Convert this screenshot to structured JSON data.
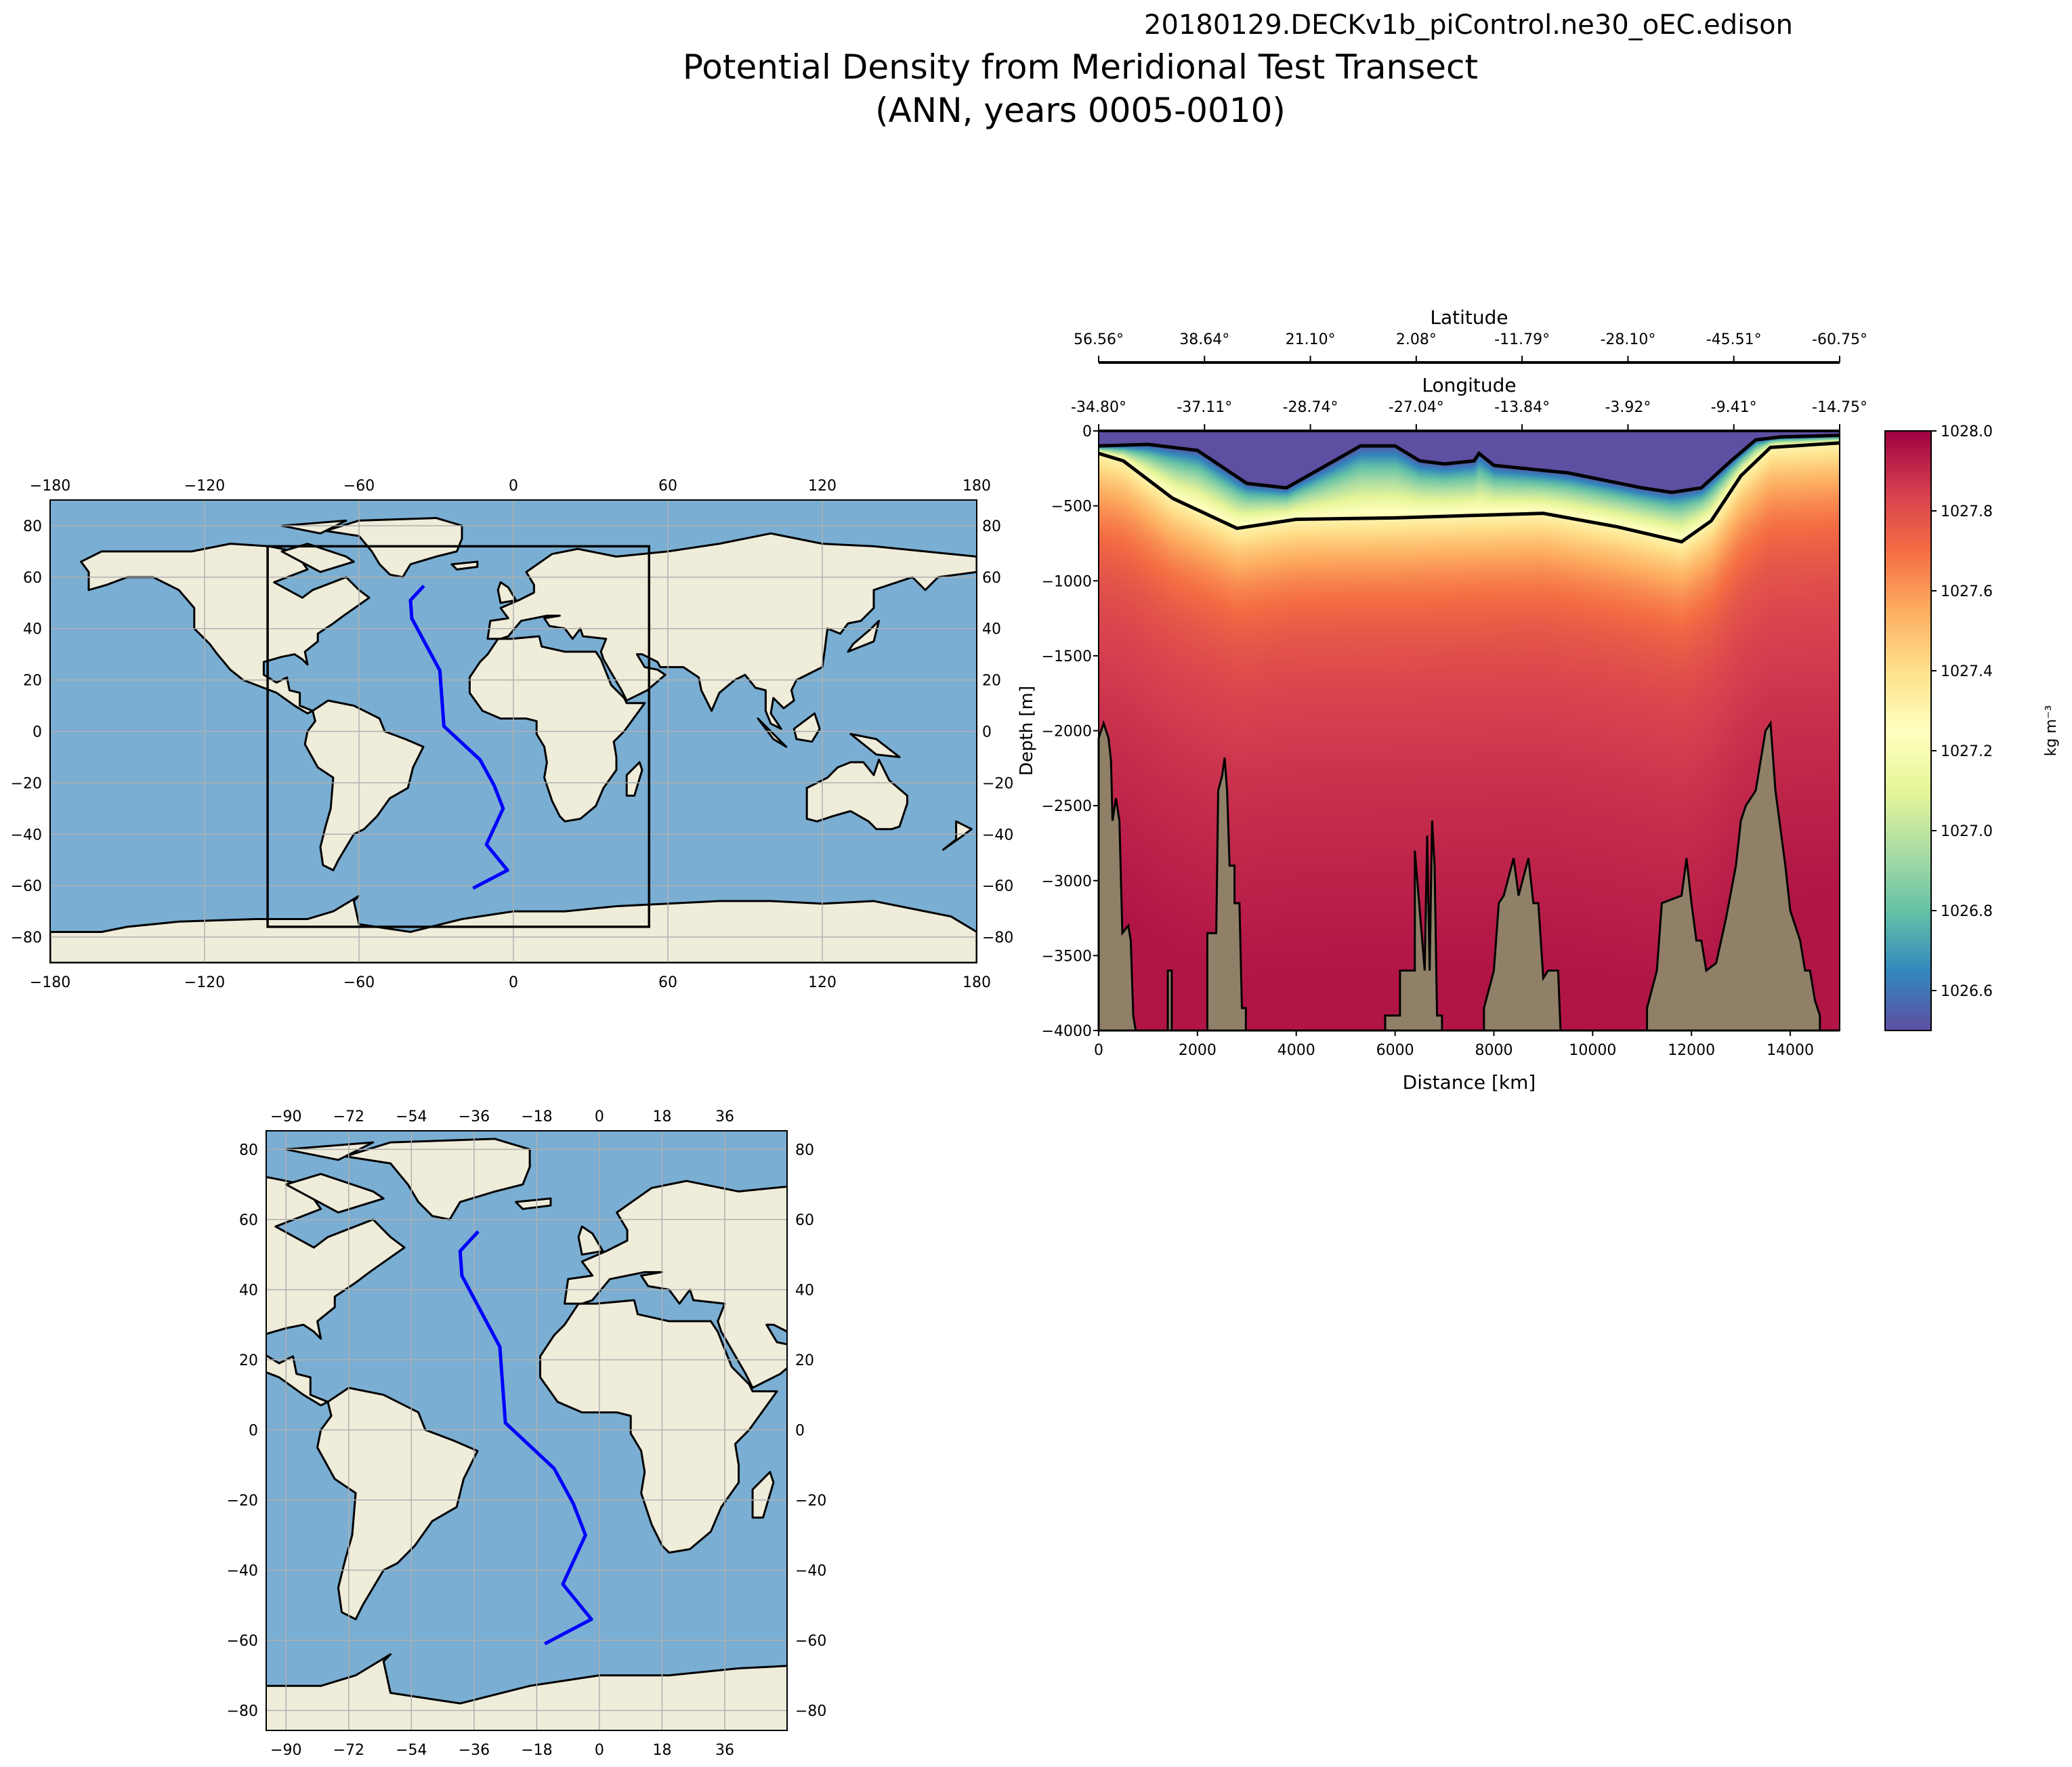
{
  "header": {
    "run_name": "20180129.DECKv1b_piControl.ne30_oEC.edison",
    "title_line1": "Potential Density from Meridional Test Transect",
    "title_line2": "(ANN, years 0005-0010)"
  },
  "chart_data": [
    {
      "type": "heatmap",
      "name": "transect-section",
      "xlabel": "Distance [km]",
      "ylabel": "Depth [m]",
      "xlim": [
        0,
        15000
      ],
      "ylim": [
        -4000,
        0
      ],
      "xticks": [
        0,
        2000,
        4000,
        6000,
        8000,
        10000,
        12000,
        14000
      ],
      "yticks": [
        0,
        -500,
        -1000,
        -1500,
        -2000,
        -2500,
        -3000,
        -3500,
        -4000
      ],
      "top_axis_1": {
        "label": "Latitude",
        "ticks": [
          "56.56°",
          "38.64°",
          "21.10°",
          "2.08°",
          "-11.79°",
          "-28.10°",
          "-45.51°",
          "-60.75°"
        ]
      },
      "top_axis_2": {
        "label": "Longitude",
        "ticks": [
          "-34.80°",
          "-37.11°",
          "-28.74°",
          "-27.04°",
          "-13.84°",
          "-3.92°",
          "-9.41°",
          "-14.75°"
        ]
      },
      "colormap": "Spectral_r",
      "colorbar": {
        "label": "kg m⁻³",
        "range": [
          1026.5,
          1028.0
        ],
        "ticks": [
          "1026.6",
          "1026.8",
          "1027.0",
          "1027.2",
          "1027.4",
          "1027.6",
          "1027.8",
          "1028.0"
        ]
      },
      "pycnocline_depth_m": {
        "x": [
          0,
          500,
          1500,
          2800,
          4000,
          6000,
          9000,
          10500,
          11800,
          12400,
          13000,
          13600,
          15000
        ],
        "depth": [
          150,
          200,
          450,
          650,
          590,
          580,
          550,
          640,
          740,
          600,
          300,
          110,
          80
        ]
      },
      "light_water_depth_m": {
        "x": [
          0,
          1000,
          2000,
          3000,
          3800,
          4500,
          5300,
          6000,
          6500,
          7000,
          7600,
          7700,
          8000,
          9500,
          11000,
          11600,
          12200,
          12800,
          13300,
          13800,
          15000
        ],
        "depth": [
          100,
          90,
          130,
          350,
          380,
          250,
          100,
          100,
          200,
          220,
          200,
          150,
          230,
          280,
          380,
          410,
          380,
          200,
          60,
          40,
          30
        ]
      },
      "bathymetry_m": {
        "x": [
          0,
          100,
          200,
          250,
          280,
          350,
          420,
          480,
          600,
          650,
          700,
          750,
          750,
          1400,
          1400,
          1480,
          1480,
          2200,
          2200,
          2380,
          2420,
          2500,
          2550,
          2600,
          2650,
          2750,
          2750,
          2850,
          2900,
          2980,
          2980,
          5800,
          5800,
          6100,
          6100,
          6400,
          6400,
          6600,
          6650,
          6700,
          6750,
          6800,
          6850,
          6950,
          6950,
          7800,
          7800,
          8000,
          8100,
          8200,
          8400,
          8500,
          8700,
          8800,
          8900,
          9000,
          9100,
          9300,
          9350,
          9350,
          11100,
          11100,
          11300,
          11400,
          11800,
          11900,
          12000,
          12100,
          12200,
          12300,
          12500,
          12700,
          12900,
          13000,
          13100,
          13300,
          13500,
          13600,
          13700,
          13800,
          13900,
          14000,
          14200,
          14300,
          14400,
          14500,
          14600,
          14600,
          15000
        ],
        "depth": [
          -2050,
          -1950,
          -2050,
          -2200,
          -2600,
          -2450,
          -2600,
          -3350,
          -3300,
          -3400,
          -3900,
          -4000,
          -4000,
          -4000,
          -3600,
          -3600,
          -4000,
          -4000,
          -3350,
          -3350,
          -2400,
          -2300,
          -2180,
          -2400,
          -2900,
          -2900,
          -3150,
          -3150,
          -3850,
          -3850,
          -4000,
          -4000,
          -3900,
          -3900,
          -3600,
          -3600,
          -2800,
          -3600,
          -2700,
          -3600,
          -2600,
          -2900,
          -3900,
          -3900,
          -4000,
          -4000,
          -3850,
          -3600,
          -3150,
          -3100,
          -2850,
          -3100,
          -2850,
          -3150,
          -3150,
          -3650,
          -3600,
          -3600,
          -4000,
          -4000,
          -4000,
          -3850,
          -3600,
          -3150,
          -3100,
          -2850,
          -3150,
          -3400,
          -3400,
          -3600,
          -3550,
          -3250,
          -2900,
          -2600,
          -2500,
          -2400,
          -2000,
          -1950,
          -2400,
          -2650,
          -2900,
          -3200,
          -3400,
          -3600,
          -3600,
          -3800,
          -3900,
          -4000,
          -4000
        ]
      }
    },
    {
      "type": "map",
      "name": "global-map",
      "lon_ticks": [
        "−180",
        "−120",
        "−60",
        "0",
        "60",
        "120",
        "180"
      ],
      "lat_ticks": [
        "80",
        "60",
        "40",
        "20",
        "0",
        "−20",
        "−40",
        "−60",
        "−80"
      ],
      "lon_range": [
        -180,
        180
      ],
      "lat_range": [
        -90,
        90
      ],
      "region_box": {
        "lon": [
          -95.5,
          52.7
        ],
        "lat": [
          -76,
          72
        ]
      }
    },
    {
      "type": "map",
      "name": "regional-map",
      "lon_ticks": [
        "−90",
        "−72",
        "−54",
        "−36",
        "−18",
        "0",
        "18",
        "36"
      ],
      "lat_ticks": [
        "80",
        "60",
        "40",
        "20",
        "0",
        "−20",
        "−40",
        "−60",
        "−80"
      ],
      "lon_range": [
        -95.7,
        53.9
      ],
      "lat_range": [
        -85.7,
        85.3
      ]
    }
  ],
  "transect": {
    "color": "#0000ff",
    "lon": [
      -34.8,
      -40.0,
      -39.5,
      -28.6,
      -27.0,
      -13.0,
      -7.5,
      -4.0,
      -10.5,
      -2.3,
      -15.7
    ],
    "lat": [
      56.6,
      51.0,
      44.0,
      23.7,
      2.0,
      -11.0,
      -21.0,
      -30.0,
      -44.0,
      -54.0,
      -61.0
    ]
  },
  "colors": {
    "ocean": "#7aaed3",
    "land": "#efecda",
    "bathymetry": "#908068",
    "grid": "#b0b0b0"
  }
}
